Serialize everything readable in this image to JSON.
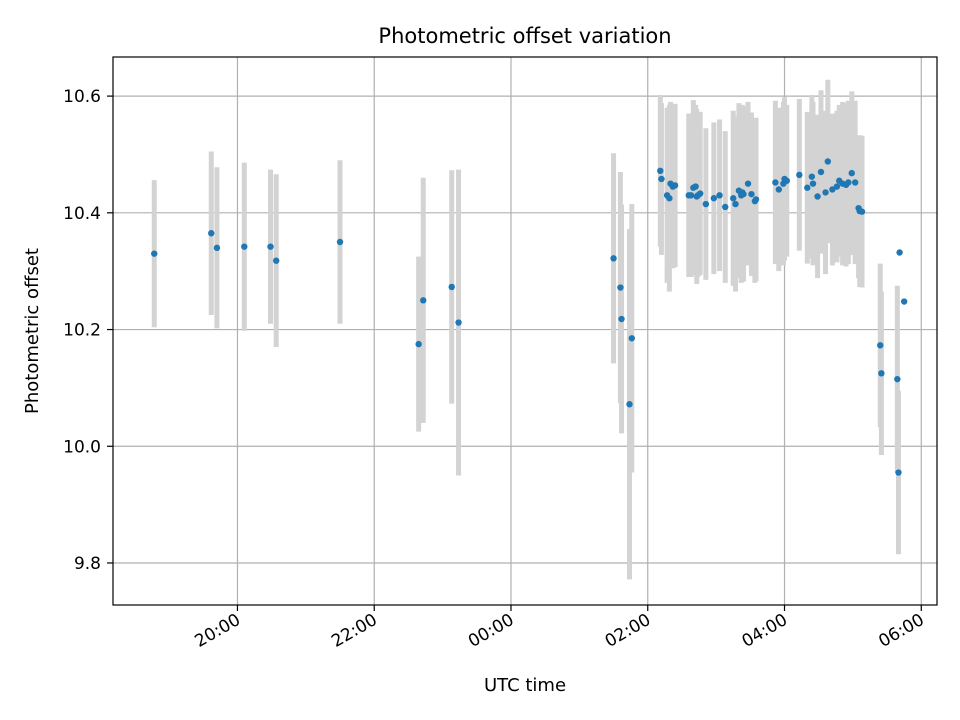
{
  "chart_data": {
    "type": "scatter",
    "title": "Photometric offset variation",
    "xlabel": "UTC time",
    "ylabel": "Photometric offset",
    "x_tick_labels": [
      "20:00",
      "22:00",
      "00:00",
      "02:00",
      "04:00",
      "06:00"
    ],
    "x_tick_hours": [
      20,
      22,
      24,
      26,
      28,
      30
    ],
    "y_ticks": [
      9.8,
      10.0,
      10.2,
      10.4,
      10.6
    ],
    "xlim_hours": [
      18.18,
      30.23
    ],
    "ylim": [
      9.728,
      10.667
    ],
    "grid": true,
    "colors": {
      "point": "#1f77b4",
      "errorbar": "#d3d3d3",
      "grid": "#b0b0b0"
    },
    "series": [
      {
        "x_time": [
          "18:47",
          "19:37",
          "19:42",
          "20:06",
          "20:29",
          "20:34",
          "21:30",
          "22:39",
          "22:43",
          "23:08",
          "23:14",
          "01:30",
          "01:36",
          "01:37",
          "01:44",
          "01:46",
          "02:11",
          "02:12",
          "02:17",
          "02:19",
          "02:20",
          "02:22",
          "02:24",
          "02:36",
          "02:38",
          "02:40",
          "02:42",
          "02:43",
          "02:44",
          "02:46",
          "02:51",
          "02:58",
          "03:03",
          "03:08",
          "03:15",
          "03:17",
          "03:20",
          "03:22",
          "03:23",
          "03:24",
          "03:28",
          "03:31",
          "03:34",
          "03:35",
          "03:52",
          "03:55",
          "03:59",
          "04:00",
          "04:02",
          "04:13",
          "04:20",
          "04:24",
          "04:25",
          "04:29",
          "04:32",
          "04:36",
          "04:38",
          "04:42",
          "04:46",
          "04:48",
          "04:51",
          "04:54",
          "04:56",
          "04:59",
          "05:02",
          "05:05",
          "05:06",
          "05:08",
          "05:24",
          "05:25",
          "05:39",
          "05:40",
          "05:41",
          "05:45"
        ],
        "y": [
          10.33,
          10.365,
          10.34,
          10.342,
          10.342,
          10.318,
          10.35,
          10.175,
          10.25,
          10.273,
          10.212,
          10.322,
          10.272,
          10.218,
          10.072,
          10.185,
          10.472,
          10.458,
          10.43,
          10.425,
          10.45,
          10.445,
          10.447,
          10.43,
          10.43,
          10.443,
          10.445,
          10.428,
          10.43,
          10.433,
          10.415,
          10.425,
          10.43,
          10.41,
          10.425,
          10.415,
          10.438,
          10.43,
          10.435,
          10.432,
          10.45,
          10.432,
          10.42,
          10.423,
          10.452,
          10.44,
          10.45,
          10.458,
          10.455,
          10.465,
          10.443,
          10.462,
          10.45,
          10.428,
          10.47,
          10.435,
          10.488,
          10.44,
          10.445,
          10.455,
          10.45,
          10.448,
          10.452,
          10.468,
          10.452,
          10.408,
          10.403,
          10.402,
          10.173,
          10.125,
          10.115,
          9.955,
          10.332,
          10.248
        ],
        "err": [
          0.126,
          0.14,
          0.138,
          0.144,
          0.132,
          0.148,
          0.14,
          0.15,
          0.21,
          0.2,
          0.262,
          0.18,
          0.198,
          0.196,
          0.3,
          0.23,
          0.13,
          0.13,
          0.15,
          0.16,
          0.14,
          0.14,
          0.14,
          0.14,
          0.14,
          0.15,
          0.14,
          0.15,
          0.14,
          0.14,
          0.13,
          0.13,
          0.13,
          0.13,
          0.15,
          0.15,
          0.15,
          0.15,
          0.15,
          0.15,
          0.14,
          0.14,
          0.14,
          0.14,
          0.14,
          0.14,
          0.14,
          0.14,
          0.13,
          0.13,
          0.13,
          0.14,
          0.14,
          0.14,
          0.14,
          0.14,
          0.14,
          0.13,
          0.13,
          0.13,
          0.14,
          0.14,
          0.14,
          0.14,
          0.14,
          0.12,
          0.13,
          0.13,
          0.14,
          0.14,
          0.16,
          0.14,
          0.0,
          0.0
        ]
      }
    ]
  }
}
